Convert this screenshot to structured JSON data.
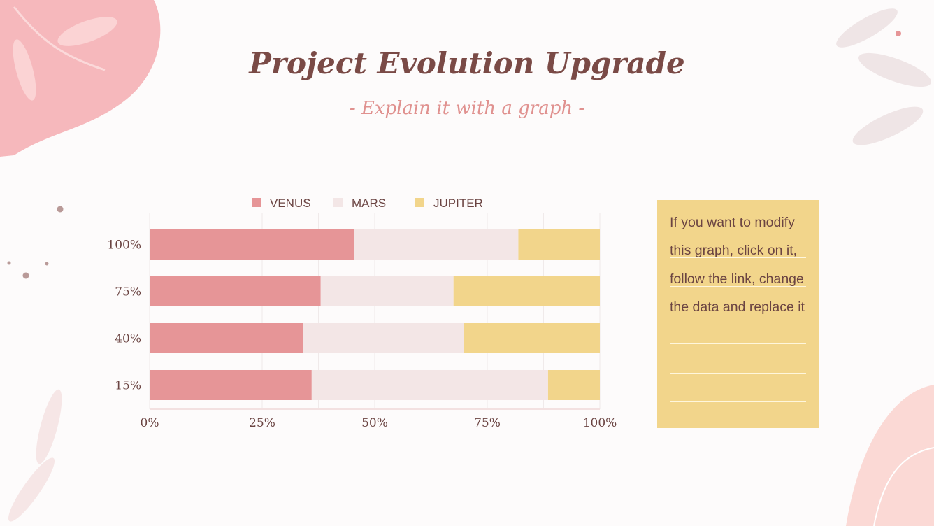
{
  "title": "Project Evolution Upgrade",
  "subtitle": "- Explain it with a graph -",
  "note": {
    "text": "If you want to modify this graph, click on it, follow the link, change the data and replace it"
  },
  "colors": {
    "venus": "#e69597",
    "mars": "#f3e6e6",
    "jupiter": "#f2d58b",
    "text": "#6b4442",
    "background": "#fdfbfb"
  },
  "chart_data": {
    "type": "bar",
    "orientation": "horizontal",
    "stacked": true,
    "categories": [
      "100%",
      "75%",
      "40%",
      "15%"
    ],
    "series": [
      {
        "name": "VENUS",
        "values": [
          45.5,
          38.0,
          34.1,
          36.0
        ]
      },
      {
        "name": "MARS",
        "values": [
          36.4,
          29.5,
          35.7,
          52.5
        ]
      },
      {
        "name": "JUPITER",
        "values": [
          18.1,
          32.5,
          30.2,
          11.5
        ]
      }
    ],
    "xticks": [
      "0%",
      "25%",
      "50%",
      "75%",
      "100%"
    ],
    "xlim": [
      0,
      100
    ],
    "grid": true,
    "legend": "top"
  }
}
